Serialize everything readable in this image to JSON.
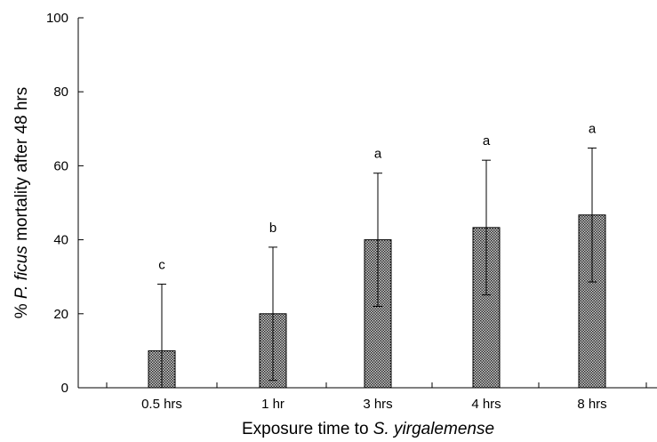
{
  "chart_data": {
    "type": "bar",
    "categories": [
      "0.5 hrs",
      "1 hr",
      "3 hrs",
      "4 hrs",
      "8 hrs"
    ],
    "values": [
      10,
      20,
      40,
      43.3,
      46.7
    ],
    "error_bars": [
      18,
      18,
      18,
      18.2,
      18.1
    ],
    "significance_letters": [
      "c",
      "b",
      "a",
      "a",
      "a"
    ],
    "ylabel": {
      "pre": "% ",
      "italic": "P. ficus",
      "post": " mortality after 48 hrs"
    },
    "xlabel": {
      "pre": "Exposure time to ",
      "italic": "S. yirgalemense",
      "post": ""
    },
    "ylim": [
      0,
      100
    ],
    "yticks": [
      0,
      20,
      40,
      60,
      80,
      100
    ],
    "grid": false,
    "bar_fill": "#8a8a8a"
  }
}
